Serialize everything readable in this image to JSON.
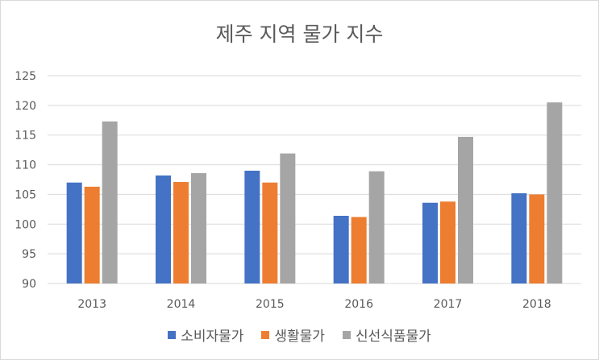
{
  "chart_data": {
    "type": "bar",
    "title": "제주 지역 물가 지수",
    "categories": [
      "2013",
      "2014",
      "2015",
      "2016",
      "2017",
      "2018"
    ],
    "series": [
      {
        "name": "소비자물가",
        "color": "#4472c4",
        "values": [
          107.0,
          108.2,
          109.0,
          101.4,
          103.6,
          105.2
        ]
      },
      {
        "name": "생활물가",
        "color": "#ed7d31",
        "values": [
          106.3,
          107.1,
          107.0,
          101.2,
          103.8,
          105.0
        ]
      },
      {
        "name": "신선식품물가",
        "color": "#a5a5a5",
        "values": [
          117.3,
          108.6,
          111.9,
          108.9,
          114.7,
          120.5
        ]
      }
    ],
    "ylim": [
      90,
      125
    ],
    "yticks": [
      "90",
      "95",
      "100",
      "105",
      "110",
      "115",
      "120",
      "125"
    ],
    "grid": true,
    "legend_position": "bottom"
  }
}
